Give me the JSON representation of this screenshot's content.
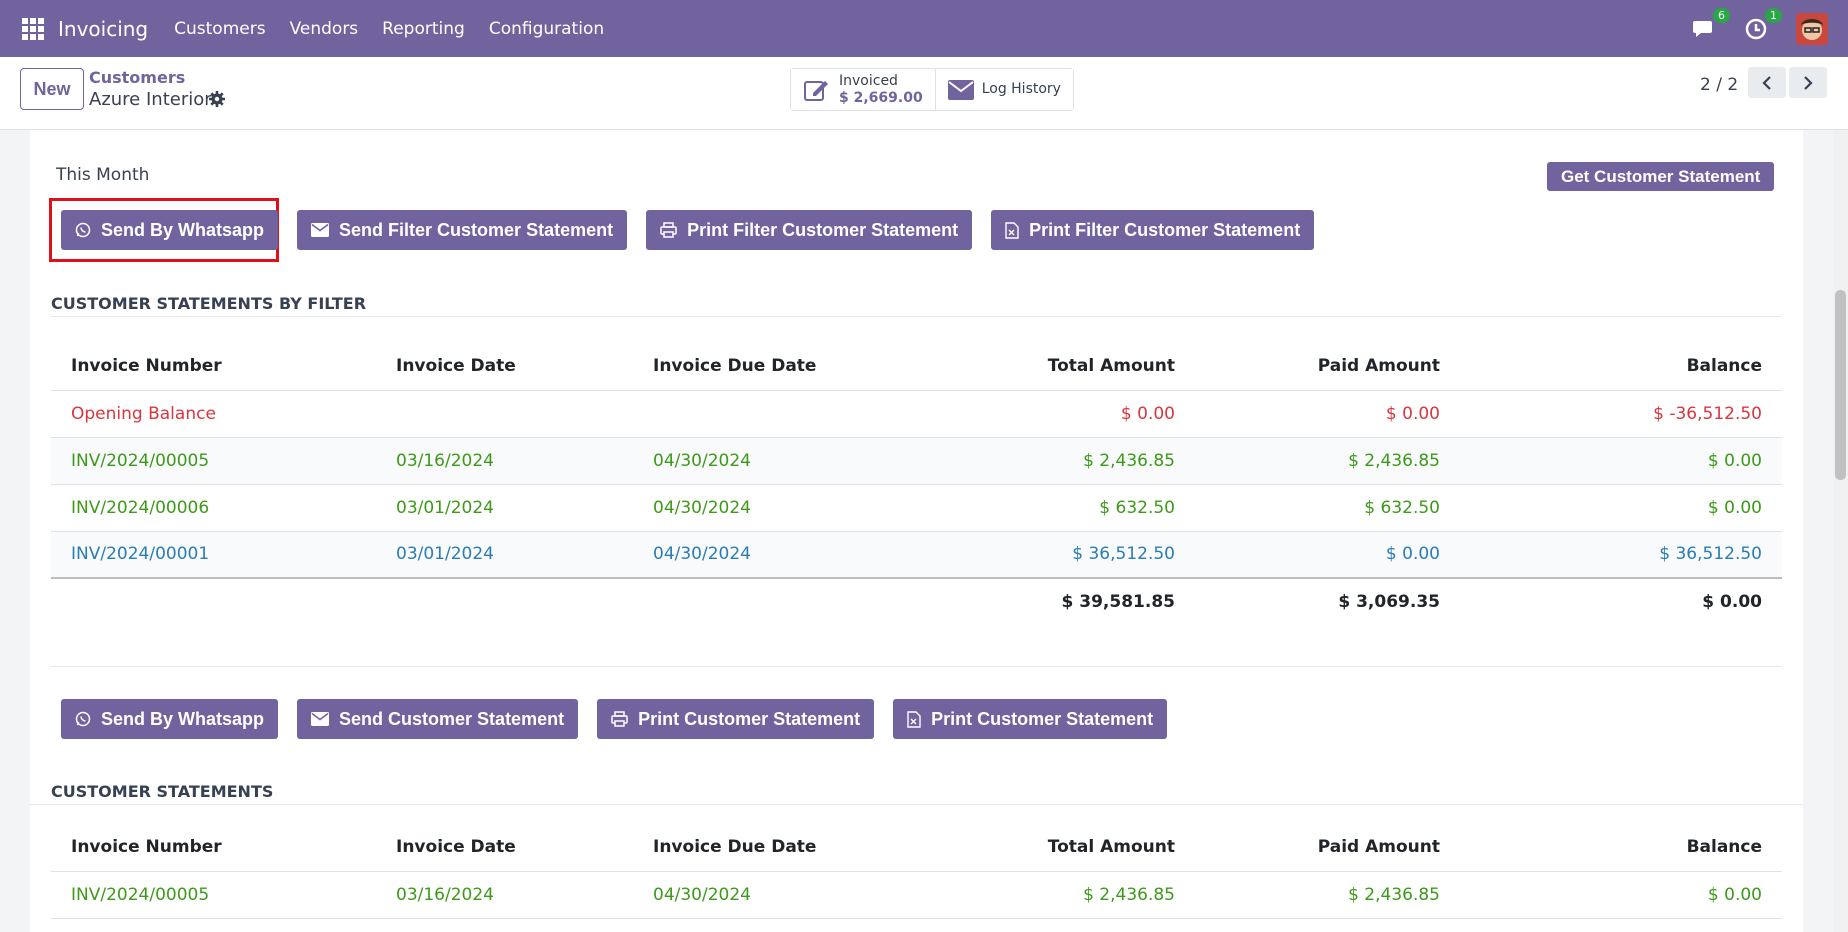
{
  "navbar": {
    "app_name": "Invoicing",
    "menu": [
      "Customers",
      "Vendors",
      "Reporting",
      "Configuration"
    ],
    "messages_count": "6",
    "activities_count": "1"
  },
  "control": {
    "new_label": "New",
    "breadcrumb_parent": "Customers",
    "breadcrumb_current": "Azure Interior",
    "invoiced_label": "Invoiced",
    "invoiced_value": "$ 2,669.00",
    "log_history_label": "Log History",
    "pager": "2 / 2"
  },
  "filter_section": {
    "period_label": "This Month",
    "get_statement_label": "Get Customer Statement",
    "buttons": [
      "Send By Whatsapp",
      "Send Filter Customer Statement",
      "Print Filter Customer Statement",
      "Print Filter Customer Statement"
    ],
    "title": "CUSTOMER STATEMENTS BY FILTER",
    "headers": [
      "Invoice Number",
      "Invoice Date",
      "Invoice Due Date",
      "Total Amount",
      "Paid Amount",
      "Balance"
    ],
    "rows": [
      {
        "number": "Opening Balance",
        "date": "",
        "due": "",
        "total": "$ 0.00",
        "paid": "$ 0.00",
        "balance": "$ -36,512.50"
      },
      {
        "number": "INV/2024/00005",
        "date": "03/16/2024",
        "due": "04/30/2024",
        "total": "$ 2,436.85",
        "paid": "$ 2,436.85",
        "balance": "$ 0.00"
      },
      {
        "number": "INV/2024/00006",
        "date": "03/01/2024",
        "due": "04/30/2024",
        "total": "$ 632.50",
        "paid": "$ 632.50",
        "balance": "$ 0.00"
      },
      {
        "number": "INV/2024/00001",
        "date": "03/01/2024",
        "due": "04/30/2024",
        "total": "$ 36,512.50",
        "paid": "$ 0.00",
        "balance": "$ 36,512.50"
      }
    ],
    "totals": {
      "total": "$ 39,581.85",
      "paid": "$ 3,069.35",
      "balance": "$ 0.00"
    }
  },
  "main_section": {
    "buttons": [
      "Send By Whatsapp",
      "Send Customer Statement",
      "Print Customer Statement",
      "Print Customer Statement"
    ],
    "title": "CUSTOMER STATEMENTS",
    "headers": [
      "Invoice Number",
      "Invoice Date",
      "Invoice Due Date",
      "Total Amount",
      "Paid Amount",
      "Balance"
    ],
    "rows": [
      {
        "number": "INV/2024/00005",
        "date": "03/16/2024",
        "due": "04/30/2024",
        "total": "$ 2,436.85",
        "paid": "$ 2,436.85",
        "balance": "$ 0.00"
      }
    ]
  },
  "colors": {
    "brand": "#71639e",
    "red": "#d9363e",
    "green": "#3d9a19",
    "blue": "#2a7cb5"
  }
}
